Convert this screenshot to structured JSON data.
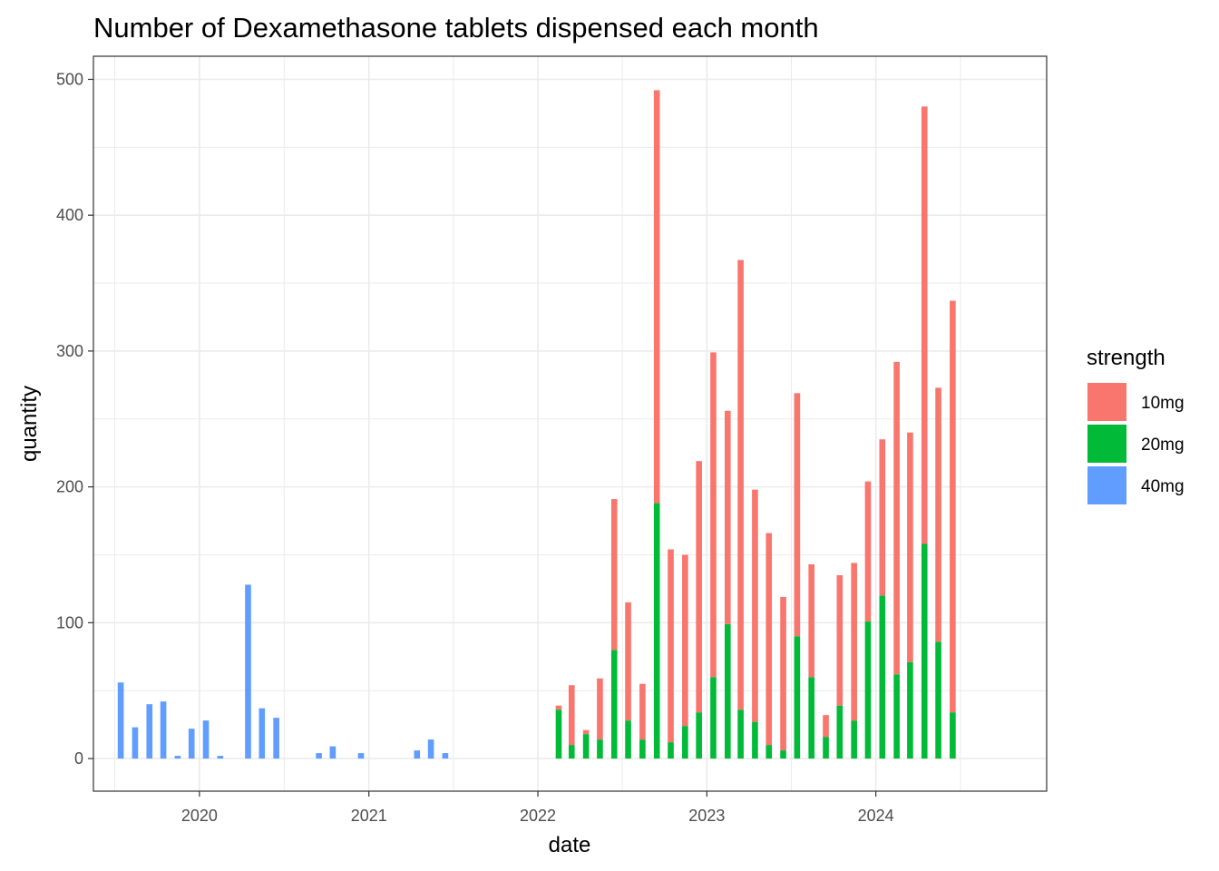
{
  "chart_data": {
    "type": "bar",
    "stacked": true,
    "title": "Number of Dexamethasone tablets dispensed each month",
    "xlabel": "date",
    "ylabel": "quantity",
    "x_axis": {
      "type": "date",
      "range": [
        "2019-05-17",
        "2025-01-04"
      ],
      "ticks": [
        "2020",
        "2021",
        "2022",
        "2023",
        "2024"
      ]
    },
    "y_axis": {
      "range": [
        -24,
        517
      ],
      "ticks": [
        0,
        100,
        200,
        300,
        400,
        500
      ]
    },
    "grid": true,
    "legend": {
      "title": "strength",
      "position": "right",
      "entries": [
        "10mg",
        "20mg",
        "40mg"
      ]
    },
    "colors": {
      "10mg": "#F8766D",
      "20mg": "#00BA38",
      "40mg": "#619CFF"
    },
    "series": [
      {
        "name": "40mg",
        "points": [
          {
            "x": "2019-07",
            "y": 56
          },
          {
            "x": "2019-08",
            "y": 23
          },
          {
            "x": "2019-09",
            "y": 40
          },
          {
            "x": "2019-10",
            "y": 42
          },
          {
            "x": "2019-11",
            "y": 2
          },
          {
            "x": "2019-12",
            "y": 22
          },
          {
            "x": "2020-01",
            "y": 28
          },
          {
            "x": "2020-02",
            "y": 2
          },
          {
            "x": "2020-04",
            "y": 128
          },
          {
            "x": "2020-05",
            "y": 37
          },
          {
            "x": "2020-06",
            "y": 30
          },
          {
            "x": "2020-09",
            "y": 4
          },
          {
            "x": "2020-10",
            "y": 9
          },
          {
            "x": "2020-12",
            "y": 4
          },
          {
            "x": "2021-04",
            "y": 6
          },
          {
            "x": "2021-05",
            "y": 14
          },
          {
            "x": "2021-06",
            "y": 4
          }
        ]
      },
      {
        "name": "20mg",
        "points": [
          {
            "x": "2022-02",
            "y": 36
          },
          {
            "x": "2022-03",
            "y": 10
          },
          {
            "x": "2022-04",
            "y": 18
          },
          {
            "x": "2022-05",
            "y": 14
          },
          {
            "x": "2022-06",
            "y": 80
          },
          {
            "x": "2022-07",
            "y": 28
          },
          {
            "x": "2022-08",
            "y": 14
          },
          {
            "x": "2022-09",
            "y": 188
          },
          {
            "x": "2022-10",
            "y": 12
          },
          {
            "x": "2022-11",
            "y": 24
          },
          {
            "x": "2022-12",
            "y": 34
          },
          {
            "x": "2023-01",
            "y": 60
          },
          {
            "x": "2023-02",
            "y": 99
          },
          {
            "x": "2023-03",
            "y": 36
          },
          {
            "x": "2023-04",
            "y": 27
          },
          {
            "x": "2023-05",
            "y": 10
          },
          {
            "x": "2023-06",
            "y": 6
          },
          {
            "x": "2023-07",
            "y": 90
          },
          {
            "x": "2023-08",
            "y": 60
          },
          {
            "x": "2023-09",
            "y": 16
          },
          {
            "x": "2023-10",
            "y": 39
          },
          {
            "x": "2023-11",
            "y": 28
          },
          {
            "x": "2023-12",
            "y": 101
          },
          {
            "x": "2024-01",
            "y": 120
          },
          {
            "x": "2024-02",
            "y": 62
          },
          {
            "x": "2024-03",
            "y": 71
          },
          {
            "x": "2024-04",
            "y": 158
          },
          {
            "x": "2024-05",
            "y": 86
          },
          {
            "x": "2024-06",
            "y": 34
          }
        ]
      },
      {
        "name": "10mg",
        "points": [
          {
            "x": "2022-02",
            "y": 3
          },
          {
            "x": "2022-03",
            "y": 44
          },
          {
            "x": "2022-04",
            "y": 3
          },
          {
            "x": "2022-05",
            "y": 45
          },
          {
            "x": "2022-06",
            "y": 111
          },
          {
            "x": "2022-07",
            "y": 87
          },
          {
            "x": "2022-08",
            "y": 41
          },
          {
            "x": "2022-09",
            "y": 304
          },
          {
            "x": "2022-10",
            "y": 142
          },
          {
            "x": "2022-11",
            "y": 126
          },
          {
            "x": "2022-12",
            "y": 185
          },
          {
            "x": "2023-01",
            "y": 239
          },
          {
            "x": "2023-02",
            "y": 157
          },
          {
            "x": "2023-03",
            "y": 331
          },
          {
            "x": "2023-04",
            "y": 171
          },
          {
            "x": "2023-05",
            "y": 156
          },
          {
            "x": "2023-06",
            "y": 113
          },
          {
            "x": "2023-07",
            "y": 179
          },
          {
            "x": "2023-08",
            "y": 83
          },
          {
            "x": "2023-09",
            "y": 16
          },
          {
            "x": "2023-10",
            "y": 96
          },
          {
            "x": "2023-11",
            "y": 116
          },
          {
            "x": "2023-12",
            "y": 103
          },
          {
            "x": "2024-01",
            "y": 115
          },
          {
            "x": "2024-02",
            "y": 230
          },
          {
            "x": "2024-03",
            "y": 169
          },
          {
            "x": "2024-04",
            "y": 322
          },
          {
            "x": "2024-05",
            "y": 187
          },
          {
            "x": "2024-06",
            "y": 303
          }
        ]
      }
    ]
  }
}
